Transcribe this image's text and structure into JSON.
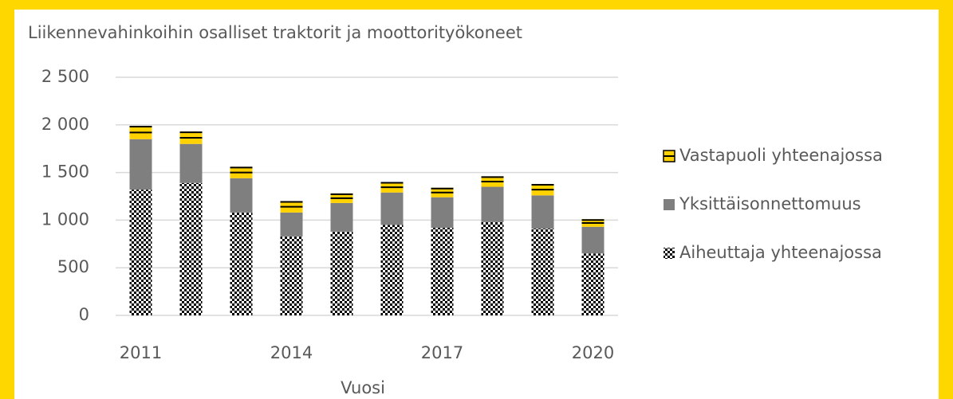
{
  "chart_data": {
    "type": "stacked_bar",
    "title": "Liikennevahinkoihin osalliset traktorit ja moottorityökoneet",
    "x_label": "Vuosi",
    "categories": [
      "2011",
      null,
      null,
      "2014",
      null,
      null,
      "2017",
      null,
      null,
      "2020"
    ],
    "series": [
      {
        "name": "Aiheuttaja yhteenajossa",
        "color": "#000000",
        "pattern": "checker",
        "values": [
          1320,
          1390,
          1080,
          830,
          880,
          950,
          920,
          980,
          910,
          650
        ]
      },
      {
        "name": "Yksittäisonnettomuus",
        "color": "#7f7f7f",
        "pattern": "solid",
        "values": [
          530,
          410,
          360,
          250,
          300,
          340,
          320,
          370,
          350,
          280
        ]
      },
      {
        "name": "Vastapuoli yhteenajossa",
        "color": "#ffd200",
        "pattern": "stripe",
        "values": [
          140,
          130,
          120,
          120,
          100,
          110,
          100,
          110,
          120,
          80
        ]
      }
    ],
    "ylim": [
      0,
      2500
    ],
    "yticks": [
      0,
      500,
      {
        "value": 1000,
        "label": "1 000"
      },
      {
        "value": 1500,
        "label": "1 500"
      },
      {
        "value": 2000,
        "label": "2 000"
      },
      {
        "value": 2500,
        "label": "2 500"
      }
    ],
    "grid": true,
    "legend": "right"
  }
}
